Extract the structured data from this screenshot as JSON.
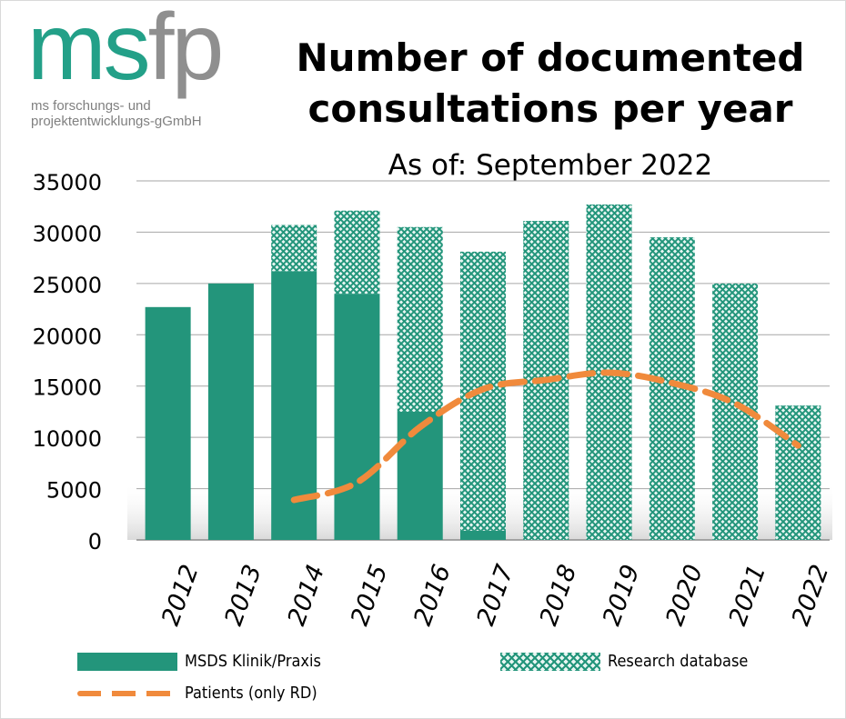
{
  "logo": {
    "word_ms": "ms",
    "word_fp": "fp",
    "sub_line1": "ms forschungs- und",
    "sub_line2": "projektentwicklungs-gGmbH"
  },
  "colors": {
    "solid": "#23957b",
    "hatch": "#23957b",
    "hatch_bg": "#e8f6f2",
    "line": "#f08a3c",
    "grid": "#8c8c8c"
  },
  "chart_data": {
    "type": "bar",
    "stacked": true,
    "title": "Number of documented consultations per year",
    "subtitle": "As of: September 2022",
    "categories": [
      "2012",
      "2013",
      "2014",
      "2015",
      "2016",
      "2017",
      "2018",
      "2019",
      "2020",
      "2021",
      "2022"
    ],
    "series": [
      {
        "name": "MSDS Klinik/Praxis",
        "kind": "bar",
        "style": "solid",
        "values": [
          22700,
          25000,
          26200,
          24000,
          12500,
          900,
          0,
          0,
          0,
          0,
          0
        ]
      },
      {
        "name": "Research database",
        "kind": "bar",
        "style": "hatched",
        "values": [
          0,
          0,
          4500,
          8100,
          18000,
          27200,
          31100,
          32700,
          29500,
          25000,
          13100
        ]
      },
      {
        "name": "Patients (only RD)",
        "kind": "line",
        "style": "dashed",
        "values": [
          null,
          null,
          3900,
          5600,
          11000,
          14700,
          15600,
          16300,
          15300,
          13300,
          9200
        ]
      }
    ],
    "ylim": [
      0,
      35000
    ],
    "yticks": [
      "0",
      "5000",
      "10000",
      "15000",
      "20000",
      "25000",
      "30000",
      "35000"
    ],
    "grid": true,
    "legend_position": "bottom"
  }
}
